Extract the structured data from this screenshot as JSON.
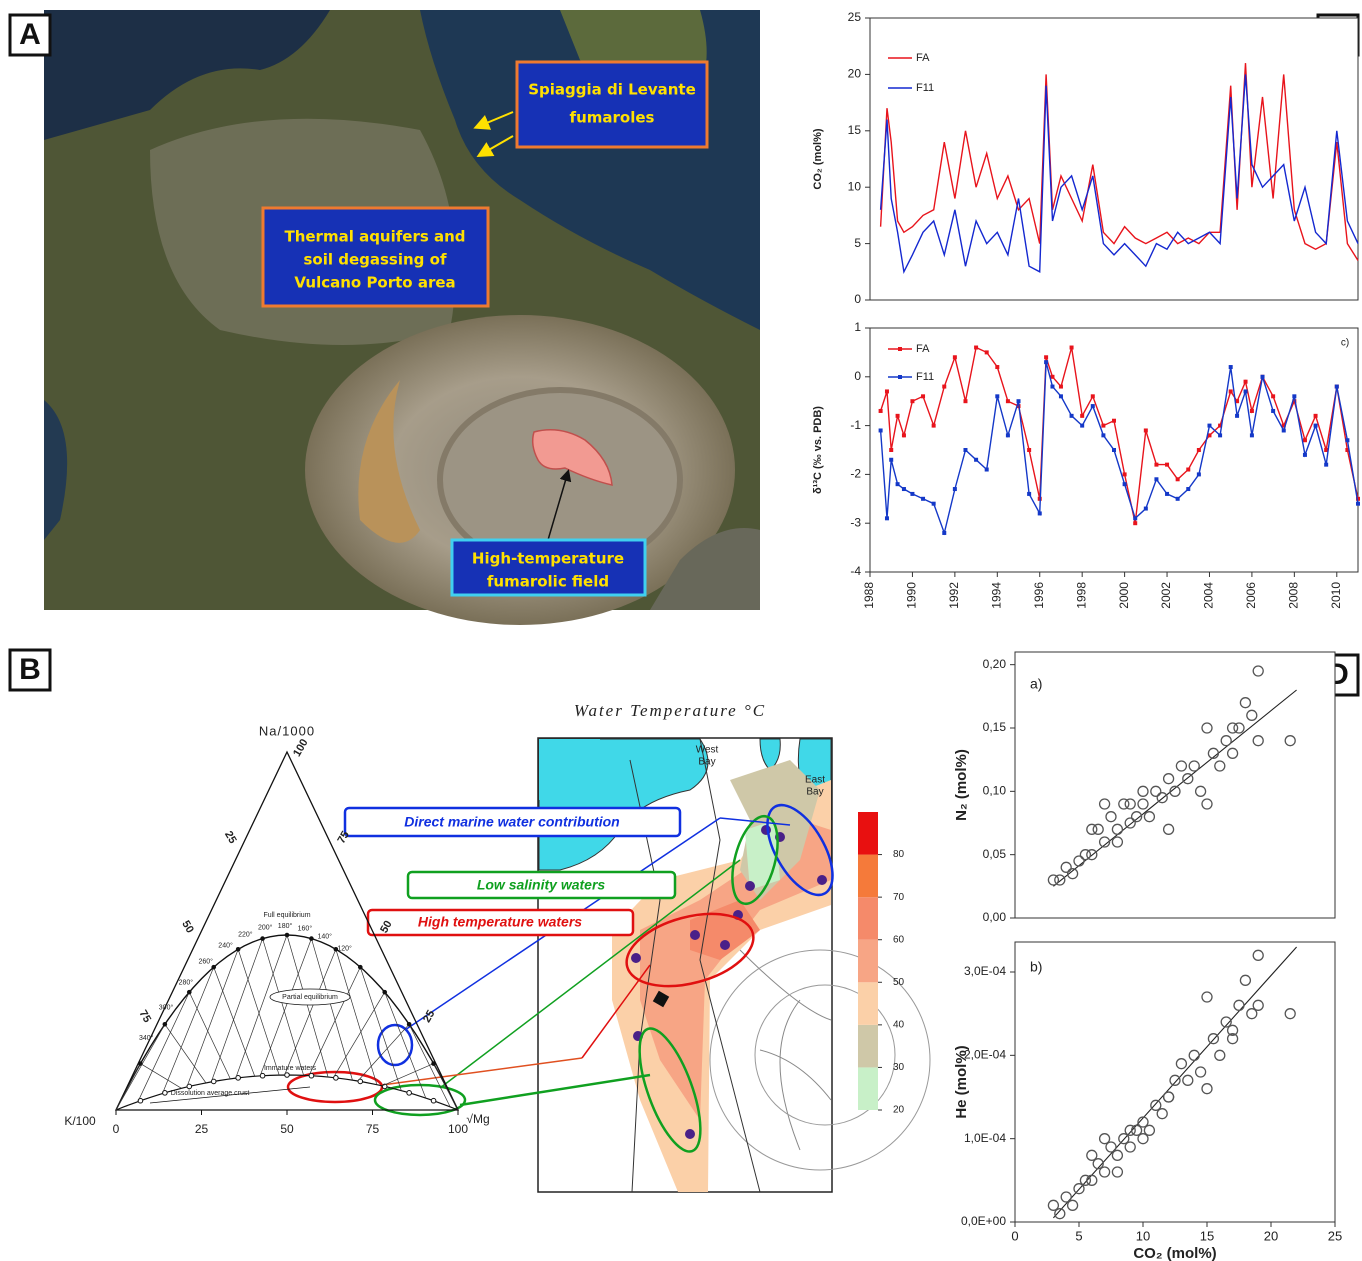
{
  "panel_labels": [
    "A",
    "B",
    "C",
    "D"
  ],
  "panel_a": {
    "callouts": [
      {
        "lines": [
          "Spiaggia di Levante",
          "fumaroles"
        ]
      },
      {
        "lines": [
          "Thermal aquifers and",
          "soil degassing of",
          "Vulcano Porto area"
        ]
      },
      {
        "lines": [
          "High-temperature",
          "fumarolic field"
        ]
      }
    ]
  },
  "panel_b": {
    "ternary": {
      "vertices": [
        "Na/1000",
        "K/100",
        "√Mg"
      ],
      "bottom_ticks": [
        0,
        25,
        50,
        75,
        100
      ],
      "left_ticks": [
        25,
        50,
        75
      ],
      "right_ticks": [
        25,
        50,
        75,
        100
      ],
      "regions": [
        "Full equilibrium",
        "Partial equilibrium",
        "Immature waters",
        "Dissolution average crust"
      ],
      "isotherms": [
        "340°",
        "300°",
        "280°",
        "260°",
        "240°",
        "220°",
        "200°",
        "180°",
        "160°",
        "140°",
        "120°"
      ]
    },
    "callouts": [
      "Direct marine water contribution",
      "Low salinity waters",
      "High temperature waters"
    ],
    "map": {
      "title": "Water Temperature °C",
      "places": [
        [
          "West",
          "Bay"
        ],
        [
          "East",
          "Bay"
        ]
      ],
      "colorbar": {
        "lim": [
          20,
          90
        ],
        "ticks": [
          20,
          30,
          40,
          50,
          60,
          70,
          80
        ],
        "colors": [
          "#c8f0c8",
          "#cfc8a8",
          "#fbd0a8",
          "#f7a585",
          "#f58a6a",
          "#f57a3a",
          "#e81010"
        ]
      }
    }
  },
  "chart_data": [
    {
      "type": "line",
      "y_label": "CO₂ (mol%)",
      "xlim": [
        1988,
        2011
      ],
      "ylim": [
        0,
        25
      ],
      "yticks": [
        0,
        5,
        10,
        15,
        20,
        25
      ],
      "x": [
        1988.5,
        1988.8,
        1989.0,
        1989.3,
        1989.6,
        1990.0,
        1990.5,
        1991.0,
        1991.5,
        1992.0,
        1992.5,
        1993.0,
        1993.5,
        1994.0,
        1994.5,
        1995.0,
        1995.5,
        1996.0,
        1996.3,
        1996.6,
        1997.0,
        1997.5,
        1998.0,
        1998.5,
        1999.0,
        1999.5,
        2000.0,
        2000.5,
        2001.0,
        2001.5,
        2002.0,
        2002.5,
        2003.0,
        2003.5,
        2004.0,
        2004.5,
        2005.0,
        2005.3,
        2005.7,
        2006.0,
        2006.5,
        2007.0,
        2007.5,
        2008.0,
        2008.5,
        2009.0,
        2009.5,
        2010.0,
        2010.5,
        2011.0
      ],
      "series": [
        {
          "name": "FA",
          "color": "#e8141c",
          "values": [
            6.5,
            17,
            14,
            7,
            6,
            6.5,
            7.5,
            8,
            14,
            9,
            15,
            10,
            13,
            9,
            11,
            8,
            9,
            5,
            20,
            8,
            11,
            9,
            7,
            12,
            6,
            5,
            6.5,
            5.5,
            5,
            5.5,
            6,
            5,
            5.5,
            5,
            6,
            6,
            19,
            8,
            21,
            10,
            18,
            9,
            20,
            8,
            5,
            4.5,
            5,
            14,
            5,
            3.5
          ]
        },
        {
          "name": "F11",
          "color": "#1428d0",
          "values": [
            8,
            16,
            9,
            6,
            2.5,
            4,
            6,
            7,
            4,
            8,
            3,
            7,
            5,
            6,
            4,
            9,
            3,
            2.5,
            19,
            7,
            10,
            11,
            8,
            11,
            5,
            4,
            5,
            4,
            3,
            5,
            4.5,
            6,
            5,
            5.5,
            6,
            5,
            18,
            9,
            20,
            12,
            10,
            11,
            12,
            7,
            10,
            6,
            5,
            15,
            7,
            5
          ]
        }
      ]
    },
    {
      "type": "line",
      "y_label": "δ¹³C (‰ vs. PDB)",
      "annotation": "c)",
      "markers": true,
      "xlim": [
        1988,
        2011
      ],
      "ylim": [
        -4,
        1
      ],
      "yticks": [
        -4,
        -3,
        -2,
        -1,
        0,
        1
      ],
      "xticks": [
        1988,
        1990,
        1992,
        1994,
        1996,
        1998,
        2000,
        2002,
        2004,
        2006,
        2008,
        2010
      ],
      "x": [
        1988.5,
        1988.8,
        1989.0,
        1989.3,
        1989.6,
        1990.0,
        1990.5,
        1991.0,
        1991.5,
        1992.0,
        1992.5,
        1993.0,
        1993.5,
        1994.0,
        1994.5,
        1995.0,
        1995.5,
        1996.0,
        1996.3,
        1996.6,
        1997.0,
        1997.5,
        1998.0,
        1998.5,
        1999.0,
        1999.5,
        2000.0,
        2000.5,
        2001.0,
        2001.5,
        2002.0,
        2002.5,
        2003.0,
        2003.5,
        2004.0,
        2004.5,
        2005.0,
        2005.3,
        2005.7,
        2006.0,
        2006.5,
        2007.0,
        2007.5,
        2008.0,
        2008.5,
        2009.0,
        2009.5,
        2010.0,
        2010.5,
        2011.0
      ],
      "series": [
        {
          "name": "FA",
          "color": "#e8141c",
          "values": [
            -0.7,
            -0.3,
            -1.5,
            -0.8,
            -1.2,
            -0.5,
            -0.4,
            -1.0,
            -0.2,
            0.4,
            -0.5,
            0.6,
            0.5,
            0.2,
            -0.5,
            -0.6,
            -1.5,
            -2.5,
            0.4,
            0.0,
            -0.2,
            0.6,
            -0.8,
            -0.4,
            -1.0,
            -0.9,
            -2.0,
            -3.0,
            -1.1,
            -1.8,
            -1.8,
            -2.1,
            -1.9,
            -1.5,
            -1.2,
            -1.0,
            -0.3,
            -0.5,
            -0.1,
            -0.7,
            0.0,
            -0.4,
            -1.0,
            -0.5,
            -1.3,
            -0.8,
            -1.5,
            -0.2,
            -1.5,
            -2.5
          ]
        },
        {
          "name": "F11",
          "color": "#1438c8",
          "values": [
            -1.1,
            -2.9,
            -1.7,
            -2.2,
            -2.3,
            -2.4,
            -2.5,
            -2.6,
            -3.2,
            -2.3,
            -1.5,
            -1.7,
            -1.9,
            -0.4,
            -1.2,
            -0.5,
            -2.4,
            -2.8,
            0.3,
            -0.2,
            -0.4,
            -0.8,
            -1.0,
            -0.6,
            -1.2,
            -1.5,
            -2.2,
            -2.9,
            -2.7,
            -2.1,
            -2.4,
            -2.5,
            -2.3,
            -2.0,
            -1.0,
            -1.2,
            0.2,
            -0.8,
            -0.3,
            -1.2,
            0.0,
            -0.7,
            -1.1,
            -0.4,
            -1.6,
            -1.0,
            -1.8,
            -0.2,
            -1.3,
            -2.6
          ]
        }
      ]
    },
    {
      "type": "scatter",
      "y_label": "N₂ (mol%)",
      "annotation": "a)",
      "color": "#555555",
      "xlim": [
        0,
        25
      ],
      "ylim": [
        0,
        0.21
      ],
      "yticks": [
        {
          "value": 0,
          "label": "0,00"
        },
        {
          "value": 0.05,
          "label": "0,05"
        },
        {
          "value": 0.1,
          "label": "0,10"
        },
        {
          "value": 0.15,
          "label": "0,15"
        },
        {
          "value": 0.2,
          "label": "0,20"
        }
      ],
      "x": [
        3,
        3.5,
        4,
        4.5,
        5,
        5.5,
        6,
        6.5,
        7,
        7.5,
        8,
        8.5,
        9,
        9.5,
        10,
        10.5,
        11,
        11.5,
        12,
        12.5,
        13,
        13.5,
        14,
        14.5,
        15,
        15.5,
        16,
        16.5,
        17,
        17.5,
        18,
        18.5,
        19,
        19,
        21.5,
        6,
        7,
        8,
        9,
        10,
        12,
        15,
        17
      ],
      "values": [
        0.03,
        0.03,
        0.04,
        0.035,
        0.045,
        0.05,
        0.05,
        0.07,
        0.06,
        0.08,
        0.07,
        0.09,
        0.075,
        0.08,
        0.09,
        0.08,
        0.1,
        0.095,
        0.11,
        0.1,
        0.12,
        0.11,
        0.12,
        0.1,
        0.15,
        0.13,
        0.12,
        0.14,
        0.15,
        0.15,
        0.17,
        0.16,
        0.195,
        0.14,
        0.14,
        0.07,
        0.09,
        0.06,
        0.09,
        0.1,
        0.07,
        0.09,
        0.13
      ],
      "trend_line": {
        "x": [
          3,
          22
        ],
        "y": [
          0.025,
          0.18
        ]
      }
    },
    {
      "type": "scatter",
      "y_label": "He (mol%)",
      "x_label": "CO₂ (mol%)",
      "annotation": "b)",
      "color": "#555555",
      "xlim": [
        0,
        25
      ],
      "ylim": [
        0,
        0.000336
      ],
      "xticks": [
        0,
        5,
        10,
        15,
        20,
        25
      ],
      "yticks": [
        {
          "value": 0,
          "label": "0,0E+00"
        },
        {
          "value": 0.0001,
          "label": "1,0E-04"
        },
        {
          "value": 0.0002,
          "label": "2,0E-04"
        },
        {
          "value": 0.0003,
          "label": "3,0E-04"
        }
      ],
      "x": [
        3,
        3.5,
        4,
        4.5,
        5,
        5.5,
        6,
        6.5,
        7,
        7.5,
        8,
        8.5,
        9,
        9.5,
        10,
        10.5,
        11,
        11.5,
        12,
        12.5,
        13,
        13.5,
        14,
        14.5,
        15,
        15.5,
        16,
        16.5,
        17,
        17.5,
        18,
        18.5,
        19,
        19,
        21.5,
        6,
        7,
        8,
        9,
        10,
        12,
        15,
        17
      ],
      "values": [
        2e-05,
        1e-05,
        3e-05,
        2e-05,
        4e-05,
        5e-05,
        5e-05,
        7e-05,
        6e-05,
        9e-05,
        8e-05,
        0.0001,
        9e-05,
        0.00011,
        0.00012,
        0.00011,
        0.00014,
        0.00013,
        0.00015,
        0.00017,
        0.00019,
        0.00017,
        0.0002,
        0.00018,
        0.00027,
        0.00022,
        0.0002,
        0.00024,
        0.00023,
        0.00026,
        0.00029,
        0.00025,
        0.00032,
        0.00026,
        0.00025,
        8e-05,
        0.0001,
        6e-05,
        0.00011,
        0.0001,
        0.00015,
        0.00016,
        0.00022
      ],
      "trend_line": {
        "x": [
          3,
          22
        ],
        "y": [
          5e-06,
          0.00033
        ]
      }
    }
  ]
}
